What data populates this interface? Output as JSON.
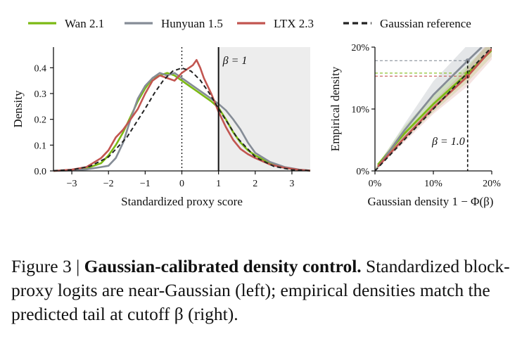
{
  "colors": {
    "wan": "#7cba14",
    "hunyuan": "#858c96",
    "ltx": "#c25550",
    "gaussian": "#222222",
    "shade": "#ededed",
    "frame": "#111111"
  },
  "legend": [
    {
      "name": "Wan 2.1",
      "color": "#7cba14",
      "style": "solid"
    },
    {
      "name": "Hunyuan 1.5",
      "color": "#858c96",
      "style": "solid"
    },
    {
      "name": "LTX 2.3",
      "color": "#c25550",
      "style": "solid"
    },
    {
      "name": "Gaussian reference",
      "color": "#222222",
      "style": "dashed"
    }
  ],
  "chart_data": [
    {
      "type": "line",
      "xlabel": "Standardized proxy score",
      "ylabel": "Density",
      "xlim": [
        -3.5,
        3.5
      ],
      "ylim": [
        0,
        0.48
      ],
      "xticks": [
        -3,
        -2,
        -1,
        0,
        1,
        2,
        3
      ],
      "xtick_labels": [
        "−3",
        "−2",
        "−1",
        "0",
        "1",
        "2",
        "3"
      ],
      "yticks": [
        0,
        0.1,
        0.2,
        0.3,
        0.4
      ],
      "ytick_labels": [
        "0.0",
        "0.1",
        "0.2",
        "0.3",
        "0.4"
      ],
      "shaded_region": [
        1,
        3.5
      ],
      "cutoff_x": 1,
      "cutoff_label": "β = 1",
      "zero_line_x": 0,
      "series": [
        {
          "name": "Wan 2.1",
          "x": [
            -3.5,
            -3,
            -2.6,
            -2.2,
            -2,
            -1.8,
            -1.6,
            -1.4,
            -1.2,
            -1.0,
            -0.8,
            -0.6,
            -0.4,
            -0.2,
            0,
            0.2,
            0.4,
            0.6,
            0.8,
            1.0,
            1.2,
            1.4,
            1.6,
            1.8,
            2.0,
            2.4,
            2.8,
            3.2,
            3.5
          ],
          "y": [
            0.0,
            0.003,
            0.01,
            0.03,
            0.06,
            0.1,
            0.15,
            0.21,
            0.27,
            0.32,
            0.36,
            0.37,
            0.38,
            0.37,
            0.35,
            0.33,
            0.31,
            0.29,
            0.27,
            0.245,
            0.2,
            0.15,
            0.11,
            0.08,
            0.06,
            0.03,
            0.012,
            0.004,
            0.001
          ]
        },
        {
          "name": "Hunyuan 1.5",
          "x": [
            -3.5,
            -3,
            -2.6,
            -2.2,
            -2,
            -1.8,
            -1.6,
            -1.4,
            -1.2,
            -1.0,
            -0.8,
            -0.6,
            -0.4,
            -0.2,
            0,
            0.2,
            0.4,
            0.6,
            0.8,
            1.0,
            1.2,
            1.4,
            1.6,
            1.8,
            2.0,
            2.4,
            2.8,
            3.2,
            3.5
          ],
          "y": [
            0.0,
            0.002,
            0.006,
            0.015,
            0.02,
            0.05,
            0.11,
            0.2,
            0.28,
            0.33,
            0.36,
            0.38,
            0.37,
            0.38,
            0.36,
            0.34,
            0.32,
            0.3,
            0.28,
            0.26,
            0.235,
            0.2,
            0.16,
            0.11,
            0.07,
            0.035,
            0.015,
            0.005,
            0.001
          ]
        },
        {
          "name": "LTX 2.3",
          "x": [
            -3.5,
            -3,
            -2.6,
            -2.2,
            -2,
            -1.8,
            -1.6,
            -1.4,
            -1.2,
            -1.0,
            -0.8,
            -0.6,
            -0.4,
            -0.2,
            0,
            0.2,
            0.3,
            0.4,
            0.5,
            0.6,
            0.8,
            1.0,
            1.2,
            1.4,
            1.6,
            1.8,
            2.0,
            2.4,
            2.8,
            3.2,
            3.5
          ],
          "y": [
            0.0,
            0.005,
            0.015,
            0.05,
            0.08,
            0.13,
            0.16,
            0.2,
            0.24,
            0.3,
            0.35,
            0.37,
            0.36,
            0.35,
            0.38,
            0.4,
            0.41,
            0.43,
            0.4,
            0.36,
            0.3,
            0.23,
            0.17,
            0.12,
            0.085,
            0.065,
            0.05,
            0.025,
            0.012,
            0.004,
            0.001
          ]
        },
        {
          "name": "Gaussian reference",
          "dashed": true,
          "x": [
            -3.5,
            -3,
            -2.5,
            -2,
            -1.5,
            -1,
            -0.75,
            -0.5,
            -0.25,
            0,
            0.25,
            0.5,
            0.75,
            1,
            1.5,
            2,
            2.5,
            3,
            3.5
          ],
          "y": [
            0.001,
            0.004,
            0.018,
            0.054,
            0.13,
            0.242,
            0.301,
            0.352,
            0.387,
            0.399,
            0.387,
            0.352,
            0.301,
            0.242,
            0.13,
            0.054,
            0.018,
            0.004,
            0.001
          ]
        }
      ]
    },
    {
      "type": "line",
      "xlabel": "Gaussian density 1 − Φ(β)",
      "ylabel": "Empirical density",
      "xlim": [
        0,
        20
      ],
      "ylim": [
        0,
        20
      ],
      "xticks": [
        0,
        10,
        20
      ],
      "xtick_labels": [
        "0%",
        "10%",
        "20%"
      ],
      "yticks": [
        0,
        10,
        20
      ],
      "ytick_labels": [
        "0%",
        "10%",
        "20%"
      ],
      "cutoff_x": 15.87,
      "cutoff_label": "β = 1.0",
      "series": [
        {
          "name": "Wan 2.1",
          "x": [
            0.5,
            5,
            10,
            15.87,
            20
          ],
          "y": [
            1.0,
            6.0,
            10.8,
            15.8,
            19.5
          ],
          "marker_at": 15.87,
          "marker_y": 15.8
        },
        {
          "name": "Hunyuan 1.5",
          "x": [
            0.5,
            5,
            10,
            15.87,
            18.3
          ],
          "y": [
            0.6,
            6.5,
            12.3,
            17.8,
            20.0
          ],
          "marker_at": 15.87,
          "marker_y": 17.8
        },
        {
          "name": "LTX 2.3",
          "x": [
            0.5,
            5,
            10,
            15.87,
            20
          ],
          "y": [
            0.7,
            5.3,
            10.2,
            15.3,
            19.7
          ],
          "marker_at": 15.87,
          "marker_y": 15.3
        },
        {
          "name": "Gaussian reference",
          "dashed": true,
          "x": [
            0,
            20
          ],
          "y": [
            0,
            20
          ]
        }
      ]
    }
  ],
  "caption": {
    "prefix": "Figure 3 | ",
    "title": "Gaussian-calibrated density control.",
    "body": " Standardized block-proxy logits are near-Gaussian (left); empirical densities match the predicted tail at cutoff β (right)."
  }
}
